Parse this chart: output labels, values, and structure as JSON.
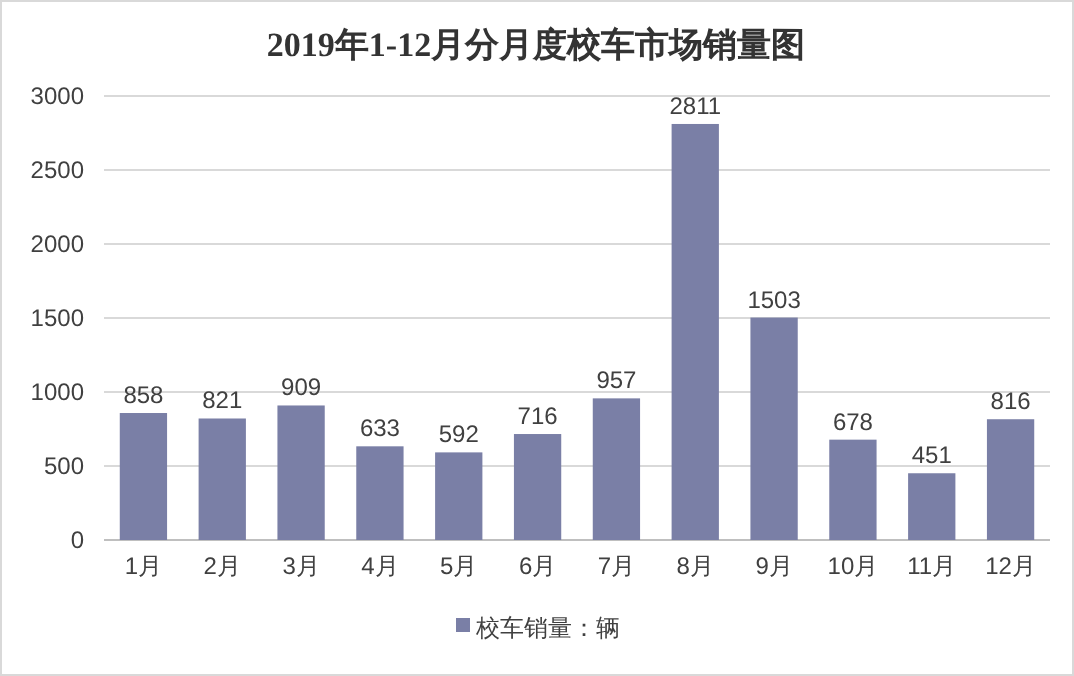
{
  "chart_data": {
    "type": "bar",
    "title": "2019年1-12月分月度校车市场销量图",
    "categories": [
      "1月",
      "2月",
      "3月",
      "4月",
      "5月",
      "6月",
      "7月",
      "8月",
      "9月",
      "10月",
      "11月",
      "12月"
    ],
    "series": [
      {
        "name": "校车销量：辆",
        "color": "#7a7fa6",
        "values": [
          858,
          821,
          909,
          633,
          592,
          716,
          957,
          2811,
          1503,
          678,
          451,
          816
        ]
      }
    ],
    "ylim": [
      0,
      3000
    ],
    "yticks": [
      0,
      500,
      1000,
      1500,
      2000,
      2500,
      3000
    ],
    "grid": "y",
    "legend": "bottom",
    "data_labels": true
  }
}
